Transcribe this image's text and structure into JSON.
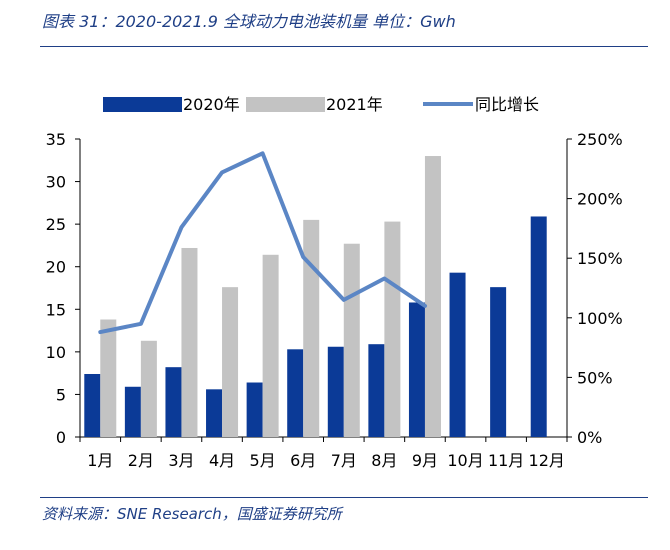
{
  "figure": {
    "title": "图表 31：2020-2021.9 全球动力电池装机量 单位：Gwh",
    "source": "资料来源：SNE Research，国盛证券研究所"
  },
  "chart_data": {
    "type": "bar",
    "categories": [
      "1月",
      "2月",
      "3月",
      "4月",
      "5月",
      "6月",
      "7月",
      "8月",
      "9月",
      "10月",
      "11月",
      "12月"
    ],
    "series": [
      {
        "name": "2020年",
        "type": "bar",
        "axis": "left",
        "color": "#0b3a97",
        "values": [
          7.4,
          5.9,
          8.2,
          5.6,
          6.4,
          10.3,
          10.6,
          10.9,
          15.8,
          19.3,
          17.6,
          25.9
        ]
      },
      {
        "name": "2021年",
        "type": "bar",
        "axis": "left",
        "color": "#c3c3c3",
        "values": [
          13.8,
          11.3,
          22.2,
          17.6,
          21.4,
          25.5,
          22.7,
          25.3,
          33.0,
          null,
          null,
          null
        ]
      },
      {
        "name": "同比增长",
        "type": "line",
        "axis": "right",
        "color": "#5b86c5",
        "values": [
          0.88,
          0.95,
          1.76,
          2.22,
          2.38,
          1.51,
          1.15,
          1.33,
          1.1,
          null,
          null,
          null
        ]
      }
    ],
    "y_left": {
      "min": 0,
      "max": 35,
      "ticks": [
        0,
        5,
        10,
        15,
        20,
        25,
        30,
        35
      ],
      "tick_labels": [
        "0",
        "5",
        "10",
        "15",
        "20",
        "25",
        "30",
        "35"
      ]
    },
    "y_right": {
      "min": 0,
      "max": 2.5,
      "ticks": [
        0,
        0.5,
        1,
        1.5,
        2,
        2.5
      ],
      "tick_labels": [
        "0%",
        "50%",
        "100%",
        "150%",
        "200%",
        "250%"
      ]
    },
    "legend_position": "top",
    "grid": false
  }
}
